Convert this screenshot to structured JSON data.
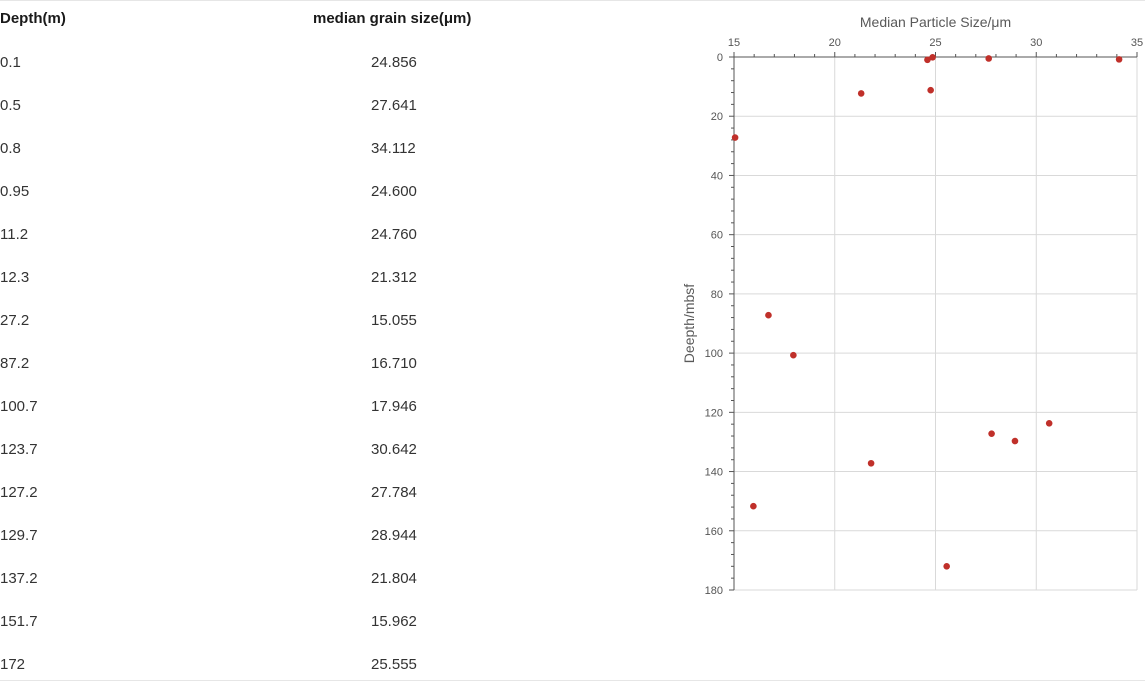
{
  "table": {
    "headers": {
      "depth": "Depth(m)",
      "grain": "median grain size(μm)"
    },
    "rows": [
      {
        "depth": "0.1",
        "grain": "24.856"
      },
      {
        "depth": "0.5",
        "grain": "27.641"
      },
      {
        "depth": "0.8",
        "grain": "34.112"
      },
      {
        "depth": "0.95",
        "grain": "24.600"
      },
      {
        "depth": "11.2",
        "grain": "24.760"
      },
      {
        "depth": "12.3",
        "grain": "21.312"
      },
      {
        "depth": "27.2",
        "grain": "15.055"
      },
      {
        "depth": "87.2",
        "grain": "16.710"
      },
      {
        "depth": "100.7",
        "grain": "17.946"
      },
      {
        "depth": "123.7",
        "grain": "30.642"
      },
      {
        "depth": "127.2",
        "grain": "27.784"
      },
      {
        "depth": "129.7",
        "grain": "28.944"
      },
      {
        "depth": "137.2",
        "grain": "21.804"
      },
      {
        "depth": "151.7",
        "grain": "15.962"
      },
      {
        "depth": "172",
        "grain": "25.555"
      }
    ]
  },
  "chart_data": {
    "type": "scatter",
    "title": "Median Particle Size/μm",
    "xlabel": "",
    "ylabel": "Deepth/mbsf",
    "xlim": [
      15,
      35
    ],
    "ylim": [
      0,
      180
    ],
    "y_inverted": true,
    "x_axis_position": "top",
    "xticks": [
      15,
      20,
      25,
      30,
      35
    ],
    "yticks": [
      0,
      20,
      40,
      60,
      80,
      100,
      120,
      140,
      160,
      180
    ],
    "grid": true,
    "marker_color": "#c0302a",
    "series": [
      {
        "points": [
          {
            "x": 24.856,
            "y": 0.1
          },
          {
            "x": 27.641,
            "y": 0.5
          },
          {
            "x": 34.112,
            "y": 0.8
          },
          {
            "x": 24.6,
            "y": 0.95
          },
          {
            "x": 24.76,
            "y": 11.2
          },
          {
            "x": 21.312,
            "y": 12.3
          },
          {
            "x": 15.055,
            "y": 27.2
          },
          {
            "x": 16.71,
            "y": 87.2
          },
          {
            "x": 17.946,
            "y": 100.7
          },
          {
            "x": 30.642,
            "y": 123.7
          },
          {
            "x": 27.784,
            "y": 127.2
          },
          {
            "x": 28.944,
            "y": 129.7
          },
          {
            "x": 21.804,
            "y": 137.2
          },
          {
            "x": 15.962,
            "y": 151.7
          },
          {
            "x": 25.555,
            "y": 172
          }
        ]
      }
    ]
  }
}
